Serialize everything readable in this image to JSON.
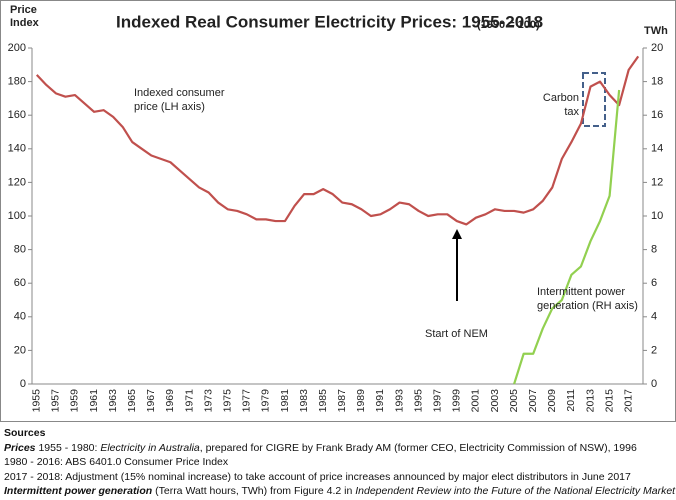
{
  "chart_data": {
    "type": "line",
    "title": "Indexed Real Consumer Electricity Prices: 1955-2018",
    "subtitle": "(1990 = 100)",
    "y_label": [
      "Price",
      "Index"
    ],
    "y2_label": "TWh",
    "categories": [
      "1955",
      null,
      "1957",
      null,
      "1959",
      null,
      "1961",
      null,
      "1963",
      null,
      "1965",
      null,
      "1967",
      null,
      "1969",
      null,
      "1971",
      null,
      "1973",
      null,
      "1975",
      null,
      "1977",
      null,
      "1979",
      null,
      "1981",
      null,
      "1983",
      null,
      "1985",
      null,
      "1987",
      null,
      "1989",
      null,
      "1991",
      null,
      "1993",
      null,
      "1995",
      null,
      "1997",
      null,
      "1999",
      null,
      "2001",
      null,
      "2003",
      null,
      "2005",
      null,
      "2007",
      null,
      "2009",
      null,
      "2011",
      null,
      "2013",
      null,
      "2015",
      null,
      "2017",
      null
    ],
    "series": [
      {
        "name": "Indexed consumer price",
        "color": "#c0504d",
        "values": [
          184,
          178,
          173,
          171,
          172,
          167,
          162,
          163,
          159,
          153,
          144,
          140,
          136,
          134,
          132,
          127,
          122,
          117,
          114,
          108,
          104,
          103,
          101,
          98,
          98,
          97,
          97,
          106,
          113,
          113,
          116,
          113,
          108,
          107,
          104,
          100,
          101,
          104,
          108,
          107,
          103,
          100,
          101,
          101,
          97,
          95,
          99,
          101,
          104,
          103,
          103,
          102,
          104,
          109,
          117,
          134,
          144,
          155,
          177,
          180,
          172,
          166,
          187,
          195
        ]
      },
      {
        "name": "Intermittent power generation",
        "color": "#92d050",
        "axis": "y2",
        "values": [
          null,
          null,
          null,
          null,
          null,
          null,
          null,
          null,
          null,
          null,
          null,
          null,
          null,
          null,
          null,
          null,
          null,
          null,
          null,
          null,
          null,
          null,
          null,
          null,
          null,
          null,
          null,
          null,
          null,
          null,
          null,
          null,
          null,
          null,
          null,
          null,
          null,
          null,
          null,
          null,
          null,
          null,
          null,
          null,
          null,
          null,
          null,
          null,
          null,
          null,
          0,
          1.8,
          1.8,
          3.3,
          4.5,
          5.0,
          6.5,
          7.0,
          8.5,
          9.7,
          11.2,
          17.5,
          null,
          null
        ]
      }
    ],
    "ylim": [
      0,
      200
    ],
    "yticks": [
      0,
      20,
      40,
      60,
      80,
      100,
      120,
      140,
      160,
      180,
      200
    ],
    "y2lim": [
      0,
      20
    ],
    "y2ticks": [
      0,
      2,
      4,
      6,
      8,
      10,
      12,
      14,
      16,
      18,
      20
    ],
    "grid": false,
    "annotations": [
      {
        "lines": [
          "Indexed consumer",
          "price (LH axis)"
        ]
      },
      {
        "lines": [
          "Carbon",
          "tax"
        ]
      },
      {
        "lines": [
          "Intermittent power",
          "generation (RH axis)"
        ]
      },
      {
        "lines": [
          "Start of NEM"
        ]
      }
    ]
  },
  "sources": {
    "heading": "Sources",
    "lines": [
      [
        "Prices",
        " 1955 - 1980: ",
        "Electricity in Australia",
        ", prepared for CIGRE by Frank Brady AM (former CEO, Electricity Commission of NSW), 1996"
      ],
      [
        "1980 - 2016: ABS 6401.0 Consumer Price Index"
      ],
      [
        "2017 - 2018: Adjustment (15% nominal increase) to take account of price increases announced by major elect distributors in June 2017"
      ],
      [
        "Intermittent power generation",
        " (Terra Watt hours, TWh) from Figure 4.2 in ",
        "Independent Review into the Future of the National Electricity Market"
      ]
    ]
  }
}
